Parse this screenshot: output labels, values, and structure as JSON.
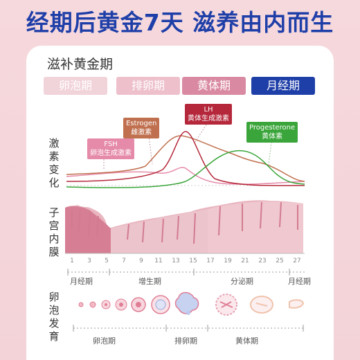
{
  "headline": "经期后黄金7天 滋养由内而生",
  "card_title": "滋补黄金期",
  "phases": [
    {
      "label": "卵泡期",
      "color": "#f1cfd6"
    },
    {
      "label": "排卵期",
      "color": "#ecb6c4"
    },
    {
      "label": "黄体期",
      "color": "#d97f9c"
    },
    {
      "label": "月经期",
      "color": "#1f3fa8"
    }
  ],
  "row_labels": {
    "hormone": "激素变化",
    "endometrium": "子宫内膜",
    "follicle": "卵泡发育"
  },
  "hormones": {
    "fsh": {
      "name": "FSH",
      "desc": "卵泡生成激素",
      "color": "#e58aa9"
    },
    "estrogen": {
      "name": "Estrogen",
      "desc": "雌激素",
      "color": "#c0704f"
    },
    "lh": {
      "name": "LH",
      "desc": "黄体生成激素",
      "color": "#b5283b"
    },
    "progesterone": {
      "name": "Progesterone",
      "desc": "黄体素",
      "color": "#3aa53a"
    }
  },
  "day_ticks": [
    "1",
    "3",
    "5",
    "7",
    "9",
    "11",
    "13",
    "15",
    "17",
    "19",
    "21",
    "23",
    "25",
    "27"
  ],
  "cycle_labels": {
    "menses_start": "月经期",
    "proliferative": "增生期",
    "secretory": "分泌期",
    "menses_end": "月经期"
  },
  "stage_labels": {
    "follicular": "卵泡期",
    "ovulation": "排卵期",
    "luteal": "黄体期"
  }
}
